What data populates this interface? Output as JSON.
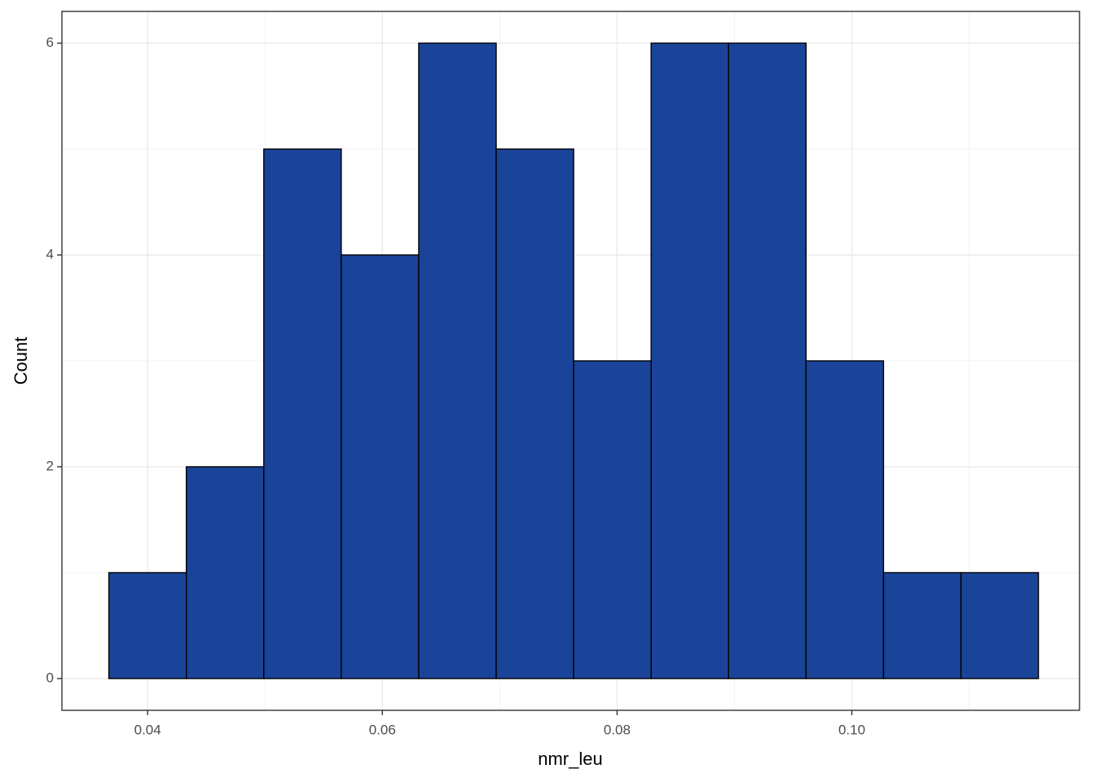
{
  "chart_data": {
    "type": "histogram",
    "x_label": "nmr_leu",
    "y_label": "Count",
    "bins": [
      0.0367,
      0.0433,
      0.0499,
      0.0565,
      0.0631,
      0.0697,
      0.0763,
      0.0829,
      0.0895,
      0.0961,
      0.1027,
      0.1093,
      0.1159
    ],
    "values": [
      1,
      2,
      5,
      4,
      6,
      5,
      3,
      6,
      6,
      3,
      1,
      1
    ],
    "color": "#1a4499",
    "edge_color": "#000000",
    "xlim": [
      0.0327,
      0.1194
    ],
    "xticks": [
      0.04,
      0.06,
      0.08,
      {
        "value": 0.1,
        "label": "0.10"
      }
    ],
    "ylim": [
      -0.3,
      6.3
    ],
    "yticks": [
      0,
      2,
      4,
      6
    ],
    "grid": true
  }
}
